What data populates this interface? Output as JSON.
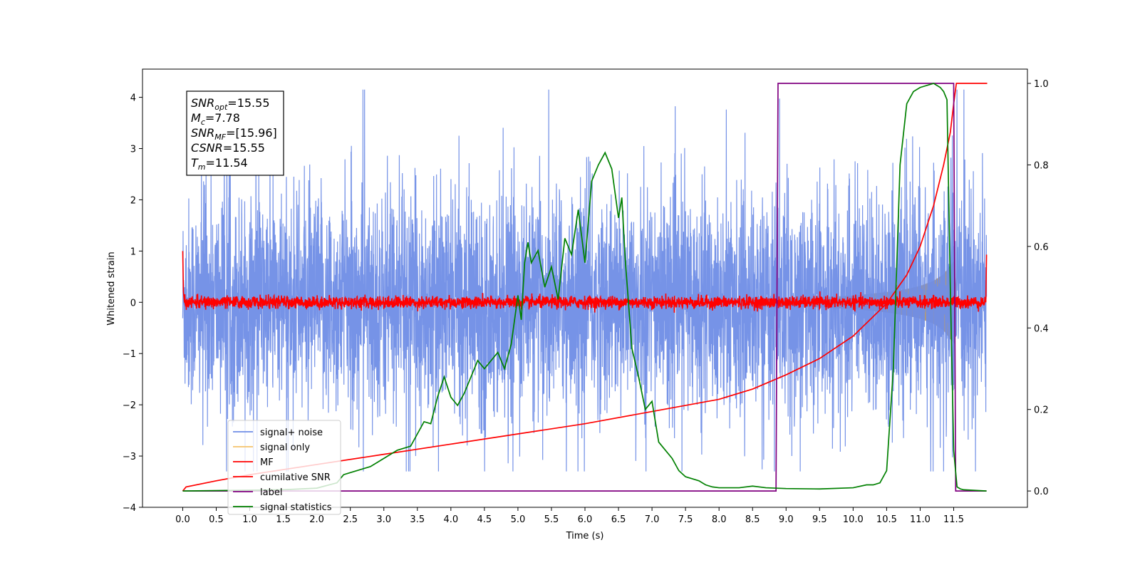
{
  "chart_data": {
    "type": "line",
    "xlabel": "Time (s)",
    "ylabel": "Whitened strain",
    "xlim": [
      -0.6,
      12.6
    ],
    "ylim": [
      -4.0,
      4.55
    ],
    "y2lim": [
      -0.04,
      1.035
    ],
    "xticks": [
      "0.0",
      "0.5",
      "1.0",
      "1.5",
      "2.0",
      "2.5",
      "3.0",
      "3.5",
      "4.0",
      "4.5",
      "5.0",
      "5.5",
      "6.0",
      "6.5",
      "7.0",
      "7.5",
      "8.0",
      "8.5",
      "9.0",
      "9.5",
      "10.0",
      "10.5",
      "11.0",
      "11.5"
    ],
    "yticks": [
      "−4",
      "−3",
      "−2",
      "−1",
      "0",
      "1",
      "2",
      "3",
      "4"
    ],
    "y2ticks": [
      "0.0",
      "0.2",
      "0.4",
      "0.6",
      "0.8",
      "1.0"
    ],
    "grid": false,
    "legend_position": "lower-left",
    "annotation": {
      "lines": [
        {
          "base": "SNR",
          "sub": "opt",
          "value": "=15.55"
        },
        {
          "base": "M",
          "sub": "c",
          "value": "=7.78"
        },
        {
          "base": "SNR",
          "sub": "MF",
          "value": "=[15.96]"
        },
        {
          "base": "CSNR",
          "sub": "",
          "value": "=15.55"
        },
        {
          "base": "T",
          "sub": "m",
          "value": "=11.54"
        }
      ]
    },
    "series": [
      {
        "name": "signal+ noise",
        "color": "#6f8de6",
        "axis": "left",
        "kind": "noise",
        "x_range": [
          0.0,
          11.99
        ],
        "envelope": 2.4
      },
      {
        "name": "signal only",
        "color": "#f5c36b",
        "axis": "left",
        "kind": "chirp_envelope",
        "fill_color": "#b99c6e",
        "x": [
          8.5,
          9.0,
          9.5,
          10.0,
          10.5,
          10.8,
          11.0,
          11.2,
          11.35,
          11.45,
          11.52,
          11.55
        ],
        "amplitude": [
          0.06,
          0.08,
          0.1,
          0.13,
          0.2,
          0.26,
          0.32,
          0.42,
          0.55,
          0.72,
          0.82,
          0.0
        ]
      },
      {
        "name": "MF",
        "color": "#ff0000",
        "axis": "left",
        "kind": "mf",
        "x_range": [
          0.0,
          11.99
        ],
        "start": 1.0,
        "end": 0.93,
        "jitter": 0.06
      },
      {
        "name": "cumilative SNR",
        "color": "#ff0000",
        "axis": "right",
        "x": [
          0.0,
          0.05,
          0.5,
          1.0,
          2.0,
          3.0,
          4.0,
          5.0,
          6.0,
          7.0,
          8.0,
          8.5,
          9.0,
          9.5,
          10.0,
          10.5,
          10.8,
          11.0,
          11.2,
          11.35,
          11.45,
          11.5,
          11.54,
          12.0
        ],
        "y": [
          0.0,
          0.01,
          0.025,
          0.04,
          0.065,
          0.09,
          0.115,
          0.14,
          0.165,
          0.195,
          0.225,
          0.25,
          0.285,
          0.325,
          0.38,
          0.46,
          0.53,
          0.6,
          0.7,
          0.8,
          0.88,
          0.95,
          1.0,
          1.0
        ]
      },
      {
        "name": "label",
        "color": "#800080",
        "axis": "right",
        "x": [
          0.0,
          8.85,
          8.88,
          11.5,
          11.53,
          11.99
        ],
        "y": [
          0.0,
          0.0,
          1.0,
          1.0,
          0.0,
          0.0
        ]
      },
      {
        "name": "signal statistics",
        "color": "#008000",
        "axis": "right",
        "x": [
          0.0,
          1.5,
          2.0,
          2.3,
          2.4,
          2.5,
          2.8,
          3.0,
          3.2,
          3.4,
          3.5,
          3.6,
          3.7,
          3.8,
          3.9,
          4.0,
          4.1,
          4.2,
          4.3,
          4.4,
          4.5,
          4.6,
          4.7,
          4.8,
          4.9,
          5.0,
          5.05,
          5.1,
          5.15,
          5.2,
          5.3,
          5.4,
          5.5,
          5.6,
          5.7,
          5.8,
          5.9,
          6.0,
          6.1,
          6.2,
          6.3,
          6.4,
          6.5,
          6.55,
          6.6,
          6.7,
          6.8,
          6.9,
          7.0,
          7.1,
          7.2,
          7.3,
          7.4,
          7.5,
          7.6,
          7.7,
          7.8,
          7.9,
          8.0,
          8.3,
          8.5,
          8.7,
          9.0,
          9.5,
          10.0,
          10.2,
          10.3,
          10.4,
          10.5,
          10.6,
          10.7,
          10.8,
          10.9,
          11.0,
          11.2,
          11.3,
          11.35,
          11.4,
          11.45,
          11.5,
          11.55,
          11.6,
          11.65,
          11.99
        ],
        "y": [
          0.0,
          0.003,
          0.007,
          0.02,
          0.04,
          0.045,
          0.06,
          0.08,
          0.1,
          0.11,
          0.14,
          0.17,
          0.165,
          0.23,
          0.28,
          0.23,
          0.21,
          0.24,
          0.28,
          0.32,
          0.3,
          0.32,
          0.34,
          0.3,
          0.36,
          0.48,
          0.42,
          0.56,
          0.61,
          0.56,
          0.59,
          0.5,
          0.55,
          0.47,
          0.62,
          0.58,
          0.69,
          0.56,
          0.76,
          0.8,
          0.83,
          0.79,
          0.67,
          0.72,
          0.57,
          0.35,
          0.28,
          0.2,
          0.22,
          0.12,
          0.1,
          0.08,
          0.05,
          0.035,
          0.03,
          0.025,
          0.015,
          0.01,
          0.008,
          0.008,
          0.012,
          0.008,
          0.006,
          0.005,
          0.008,
          0.015,
          0.015,
          0.02,
          0.05,
          0.3,
          0.8,
          0.95,
          0.98,
          0.99,
          1.0,
          0.99,
          0.98,
          0.96,
          0.5,
          0.1,
          0.01,
          0.005,
          0.003,
          0.0
        ]
      }
    ]
  }
}
